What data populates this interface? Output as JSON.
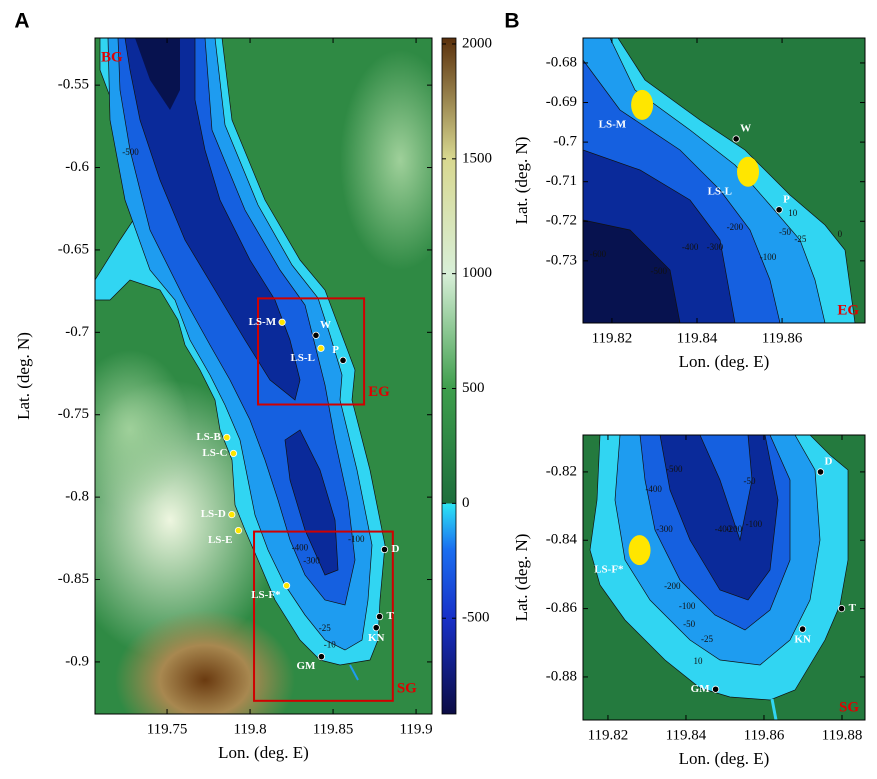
{
  "panels": [
    {
      "label": "A",
      "xlabel": "Lon. (deg. E)",
      "ylabel": "Lat. (deg. N)",
      "corner_label": "BG",
      "xlim": [
        119.7066,
        119.9096
      ],
      "ylim": [
        -0.9316,
        -0.5214
      ],
      "xticks": [
        119.75,
        119.8,
        119.85,
        119.9
      ],
      "yticks": [
        -0.55,
        -0.6,
        -0.65,
        -0.7,
        -0.75,
        -0.8,
        -0.85,
        -0.9
      ],
      "boxes": [
        {
          "label": "EG",
          "lon": [
            119.8048,
            119.8687
          ],
          "lat": [
            -0.7438,
            -0.6794
          ]
        },
        {
          "label": "SG",
          "lon": [
            119.8024,
            119.886
          ],
          "lat": [
            -0.9236,
            -0.8209
          ]
        }
      ],
      "sites": [
        {
          "name": "LS-M",
          "lon": 119.8193,
          "lat": -0.6939,
          "color": "#ffe600",
          "anchor": "left"
        },
        {
          "name": "W",
          "lon": 119.8397,
          "lat": -0.7018,
          "color": "#000000",
          "anchor": "above-right"
        },
        {
          "name": "LS-L",
          "lon": 119.8427,
          "lat": -0.7097,
          "color": "#ffe600",
          "anchor": "below-left"
        },
        {
          "name": "P",
          "lon": 119.856,
          "lat": -0.717,
          "color": "#000000",
          "anchor": "above-left"
        },
        {
          "name": "LS-B",
          "lon": 119.786,
          "lat": -0.7638,
          "color": "#ffe600",
          "anchor": "left"
        },
        {
          "name": "LS-C",
          "lon": 119.79,
          "lat": -0.7735,
          "color": "#ffe600",
          "anchor": "left"
        },
        {
          "name": "LS-D",
          "lon": 119.789,
          "lat": -0.8106,
          "color": "#ffe600",
          "anchor": "left"
        },
        {
          "name": "LS-E",
          "lon": 119.793,
          "lat": -0.8203,
          "color": "#ffe600",
          "anchor": "below-left"
        },
        {
          "name": "D",
          "lon": 119.881,
          "lat": -0.8318,
          "color": "#000000",
          "anchor": "right"
        },
        {
          "name": "LS-F*",
          "lon": 119.822,
          "lat": -0.8537,
          "color": "#ffe600",
          "anchor": "below-left"
        },
        {
          "name": "T",
          "lon": 119.878,
          "lat": -0.8725,
          "color": "#000000",
          "anchor": "right"
        },
        {
          "name": "KN",
          "lon": 119.876,
          "lat": -0.8792,
          "color": "#000000",
          "anchor": "below"
        },
        {
          "name": "GM",
          "lon": 119.843,
          "lat": -0.8968,
          "color": "#000000",
          "anchor": "below-left"
        }
      ],
      "contours": [
        {
          "value": -500,
          "lon": 119.728,
          "lat": -0.591
        },
        {
          "value": -400,
          "lon": 119.83,
          "lat": -0.831
        },
        {
          "value": -300,
          "lon": 119.837,
          "lat": -0.839
        },
        {
          "value": -100,
          "lon": 119.864,
          "lat": -0.826
        },
        {
          "value": -25,
          "lon": 119.845,
          "lat": -0.88
        },
        {
          "value": -10,
          "lon": 119.848,
          "lat": -0.89
        }
      ]
    },
    {
      "label": "B",
      "xlabel": "Lon. (deg. E)",
      "ylabel": "Lat. (deg. N)",
      "corner_label": "EG",
      "xlim": [
        119.8132,
        119.8795
      ],
      "ylim": [
        -0.7457,
        -0.6737
      ],
      "xticks": [
        119.82,
        119.84,
        119.86
      ],
      "yticks": [
        -0.68,
        -0.69,
        -0.7,
        -0.71,
        -0.72,
        -0.73
      ],
      "sites": [
        {
          "name": "LS-M",
          "lon": 119.8271,
          "lat": -0.6906,
          "color": "#ffe600",
          "anchor": "below-left",
          "patch": true
        },
        {
          "name": "W",
          "lon": 119.8492,
          "lat": -0.6992,
          "color": "#000000",
          "anchor": "above-right"
        },
        {
          "name": "LS-L",
          "lon": 119.852,
          "lat": -0.7075,
          "color": "#ffe600",
          "anchor": "below-left",
          "patch": true
        },
        {
          "name": "P",
          "lon": 119.8593,
          "lat": -0.7171,
          "color": "#000000",
          "anchor": "above-right"
        }
      ],
      "contours": [
        {
          "value": -600,
          "lon": 119.8167,
          "lat": -0.7285
        },
        {
          "value": -500,
          "lon": 119.831,
          "lat": -0.7328
        },
        {
          "value": -400,
          "lon": 119.8384,
          "lat": -0.7267
        },
        {
          "value": -300,
          "lon": 119.8442,
          "lat": -0.7267
        },
        {
          "value": -200,
          "lon": 119.8489,
          "lat": -0.7217
        },
        {
          "value": -100,
          "lon": 119.8567,
          "lat": -0.7292
        },
        {
          "value": -50,
          "lon": 119.8607,
          "lat": -0.7229
        },
        {
          "value": -25,
          "lon": 119.8643,
          "lat": -0.7247
        },
        {
          "value": 10,
          "lon": 119.8625,
          "lat": -0.7182
        },
        {
          "value": 0,
          "lon": 119.8736,
          "lat": -0.7234
        }
      ]
    },
    {
      "xlabel": "Lon. (deg. E)",
      "ylabel": "Lat. (deg. N)",
      "corner_label": "SG",
      "xlim": [
        119.8136,
        119.8859
      ],
      "ylim": [
        -0.8926,
        -0.8092
      ],
      "xticks": [
        119.82,
        119.84,
        119.86,
        119.88
      ],
      "yticks": [
        -0.82,
        -0.84,
        -0.86,
        -0.88
      ],
      "sites": [
        {
          "name": "D",
          "lon": 119.8745,
          "lat": -0.82,
          "color": "#000000",
          "anchor": "above-right"
        },
        {
          "name": "LS-F*",
          "lon": 119.8281,
          "lat": -0.8429,
          "color": "#ffe600",
          "anchor": "below-left",
          "patch": true
        },
        {
          "name": "T",
          "lon": 119.8799,
          "lat": -0.86,
          "color": "#000000",
          "anchor": "right"
        },
        {
          "name": "KN",
          "lon": 119.8699,
          "lat": -0.866,
          "color": "#000000",
          "anchor": "below"
        },
        {
          "name": "GM",
          "lon": 119.8476,
          "lat": -0.8836,
          "color": "#000000",
          "anchor": "left"
        }
      ],
      "contours": [
        {
          "value": -500,
          "lon": 119.837,
          "lat": -0.8194
        },
        {
          "value": -400,
          "lon": 119.8317,
          "lat": -0.8253
        },
        {
          "value": -300,
          "lon": 119.8345,
          "lat": -0.837
        },
        {
          "value": -400,
          "lon": 119.8495,
          "lat": -0.837
        },
        {
          "value": -200,
          "lon": 119.8523,
          "lat": -0.837
        },
        {
          "value": -100,
          "lon": 119.8574,
          "lat": -0.8355
        },
        {
          "value": -50,
          "lon": 119.8563,
          "lat": -0.8229
        },
        {
          "value": -200,
          "lon": 119.8365,
          "lat": -0.8537
        },
        {
          "value": -100,
          "lon": 119.8403,
          "lat": -0.8595
        },
        {
          "value": -50,
          "lon": 119.8408,
          "lat": -0.8648
        },
        {
          "value": -25,
          "lon": 119.8454,
          "lat": -0.8692
        },
        {
          "value": 10,
          "lon": 119.8431,
          "lat": -0.8756
        }
      ]
    }
  ],
  "colorbar": {
    "lim": [
      -917,
      2026
    ],
    "ticks": [
      2000,
      1500,
      1000,
      500,
      0,
      -500
    ],
    "stops": [
      {
        "value": -917,
        "color": "#0c0c44"
      },
      {
        "value": -500,
        "color": "#1830c8"
      },
      {
        "value": -200,
        "color": "#1a6ef0"
      },
      {
        "value": 0,
        "color": "#2ee6f5"
      },
      {
        "value": 0,
        "color": "#1d6e3c"
      },
      {
        "value": 500,
        "color": "#3e9e4c"
      },
      {
        "value": 1000,
        "color": "#d8efd8"
      },
      {
        "value": 1500,
        "color": "#d8d890"
      },
      {
        "value": 2026,
        "color": "#5a300c"
      }
    ]
  }
}
